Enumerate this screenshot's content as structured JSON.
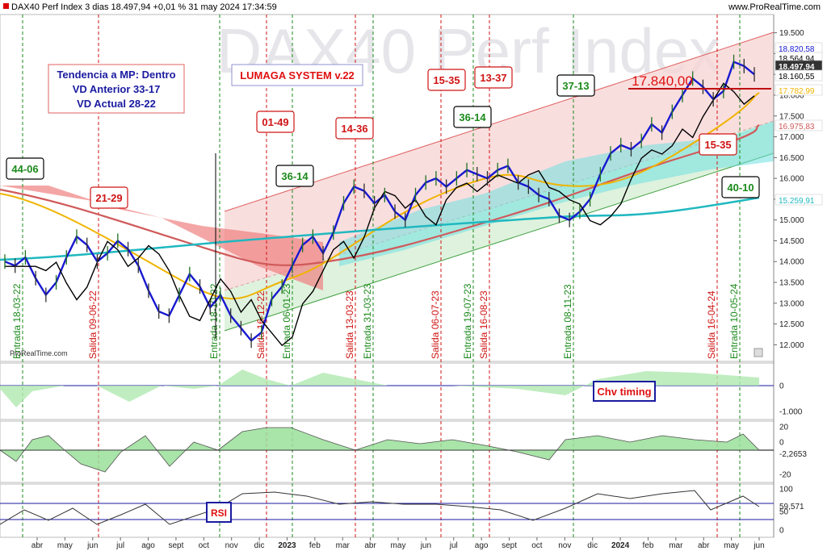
{
  "header": {
    "title": "DAX40 Perf Index 3 dias 18.497,94 +0,01 % 31 may 2024 17:34:59",
    "source": "www.ProRealTime.com",
    "watermark": "DAX40 Perf Index",
    "credit": "ProRealTime.com"
  },
  "info_box": {
    "line1": "Tendencia a MP: Dentro",
    "line2": "VD Anterior 33-17",
    "line3": "VD Actual 28-22"
  },
  "system_label": "LUMAGA SYSTEM v.22",
  "chv_label": "Chv timing",
  "rsi_label": "RSI",
  "level_label": "17.840,00",
  "chart_data": {
    "type": "line",
    "title": "DAX40 Perf Index 3 dias",
    "x_ticks": [
      "abr",
      "may",
      "jun",
      "jul",
      "ago",
      "sept",
      "oct",
      "nov",
      "dic",
      "2023",
      "feb",
      "mar",
      "abr",
      "may",
      "jun",
      "jul",
      "ago",
      "sept",
      "oct",
      "nov",
      "dic",
      "2024",
      "feb",
      "mar",
      "abr",
      "may",
      "jun"
    ],
    "y_ticks": [
      "19.500",
      "19.000",
      "18.500",
      "18.000",
      "17.500",
      "17.000",
      "16.500",
      "16.000",
      "15.500",
      "15.000",
      "14.500",
      "14.000",
      "13.500",
      "13.000",
      "12.500",
      "12.000"
    ],
    "ylim": [
      11.6,
      19.9
    ],
    "price_labels": [
      "18.820,58",
      "18.564,94",
      "18.497,94",
      "18.160,55",
      "17.782,99",
      "16.975,83",
      "15.259,91"
    ],
    "close": [
      14.0,
      13.9,
      14.1,
      13.6,
      13.2,
      13.5,
      14.1,
      14.6,
      14.4,
      14.0,
      14.2,
      14.5,
      14.3,
      13.9,
      13.3,
      12.8,
      12.7,
      13.2,
      13.7,
      13.4,
      12.9,
      13.2,
      12.7,
      12.4,
      12.1,
      12.3,
      13.1,
      13.4,
      13.9,
      14.4,
      14.6,
      14.2,
      14.7,
      15.4,
      15.8,
      15.7,
      15.4,
      15.6,
      15.2,
      15.0,
      15.6,
      15.9,
      16.0,
      15.8,
      16.0,
      16.2,
      16.1,
      16.0,
      16.2,
      16.3,
      15.9,
      15.8,
      15.6,
      15.5,
      15.1,
      15.0,
      15.2,
      15.5,
      16.1,
      16.6,
      16.8,
      16.7,
      16.9,
      17.3,
      17.1,
      17.6,
      18.0,
      18.4,
      18.2,
      17.9,
      18.1,
      18.8,
      18.7,
      18.5
    ],
    "signals": [
      {
        "text": "44-06",
        "kind": "entry"
      },
      {
        "text": "21-29",
        "kind": "exit"
      },
      {
        "text": "01-49",
        "kind": "exit"
      },
      {
        "text": "36-14",
        "kind": "entry"
      },
      {
        "text": "14-36",
        "kind": "exit"
      },
      {
        "text": "15-35",
        "kind": "exit"
      },
      {
        "text": "13-37",
        "kind": "exit"
      },
      {
        "text": "36-14",
        "kind": "entry"
      },
      {
        "text": "37-13",
        "kind": "entry"
      },
      {
        "text": "15-35",
        "kind": "exit"
      },
      {
        "text": "40-10",
        "kind": "entry"
      }
    ],
    "vlines": [
      {
        "text": "Entrada 18-03-22",
        "kind": "entry"
      },
      {
        "text": "Salida 09-06-22",
        "kind": "exit"
      },
      {
        "text": "Entrada 18-10-22",
        "kind": "entry"
      },
      {
        "text": "Salida 16-12-22",
        "kind": "exit"
      },
      {
        "text": "Entrada 06-01-23",
        "kind": "entry"
      },
      {
        "text": "Salida 13-03-23",
        "kind": "exit"
      },
      {
        "text": "Entrada 31-03-23",
        "kind": "entry"
      },
      {
        "text": "Salida 06-07-23",
        "kind": "exit"
      },
      {
        "text": "Entrada 19-07-23",
        "kind": "entry"
      },
      {
        "text": "Salida 16-08-23",
        "kind": "exit"
      },
      {
        "text": "Entrada 08-11-23",
        "kind": "entry"
      },
      {
        "text": "Salida 16-04-24",
        "kind": "exit"
      },
      {
        "text": "Entrada 10-05-24",
        "kind": "entry"
      }
    ],
    "panel_chv": {
      "label": "Chv timing",
      "ticks": [
        "0",
        "-1.000"
      ]
    },
    "panel_osc": {
      "ticks": [
        "20",
        "0",
        "-20"
      ],
      "value_label": "-2,2653"
    },
    "panel_rsi": {
      "label": "RSI",
      "ticks": [
        "100",
        "50",
        "0"
      ],
      "value_label": "59,571"
    },
    "colors": {
      "entry": "#1b8a1b",
      "exit": "#d01414",
      "blue_line": "#1818d0",
      "black_line": "#000000",
      "ma_yellow": "#f0b400",
      "ma_red": "#d05a5a",
      "ma_cyan": "#20b8c0"
    }
  }
}
